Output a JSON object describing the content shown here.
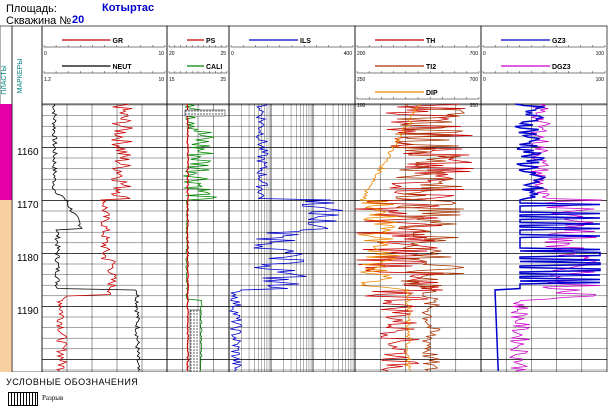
{
  "header": {
    "area_label": "Площадь:",
    "area_value": "Котыртас",
    "well_label": "Скважина №",
    "well_value": "20"
  },
  "strat_column_label": "ПЛАСТЫ",
  "depth_column_label": "МАРКЕРЫ",
  "depth_ticks": [
    "1160",
    "1170",
    "1180",
    "1190"
  ],
  "tracks": {
    "track1": {
      "curves": [
        {
          "name": "GR",
          "min": "0",
          "max": "10",
          "color": "#cc0000"
        },
        {
          "name": "NEUT",
          "min": "1.2",
          "max": "10",
          "color": "#000000"
        }
      ]
    },
    "track2": {
      "curves": [
        {
          "name": "PS",
          "min": "20",
          "max": "25",
          "color": "#cc0000"
        },
        {
          "name": "CALI",
          "min": "15",
          "max": "25",
          "color": "#008800"
        }
      ]
    },
    "track3": {
      "curves": [
        {
          "name": "ILS",
          "min": "0",
          "max": "400",
          "color": "#0000cc"
        }
      ]
    },
    "track4": {
      "curves": [
        {
          "name": "TH",
          "min": "200",
          "max": "700",
          "color": "#cc0000"
        },
        {
          "name": "TI2",
          "min": "250",
          "max": "700",
          "color": "#aa3300"
        },
        {
          "name": "DIP",
          "min": "100",
          "max": "350",
          "color": "#ee8800"
        }
      ]
    },
    "track5": {
      "curves": [
        {
          "name": "GZ3",
          "min": "0",
          "max": "100",
          "color": "#0000cc"
        },
        {
          "name": "DGZ3",
          "min": "0",
          "max": "100",
          "color": "#cc00cc"
        }
      ]
    }
  },
  "legend": {
    "title": "УСЛОВНЫЕ ОБОЗНАЧЕНИЯ",
    "item_label": "Разрыв"
  }
}
